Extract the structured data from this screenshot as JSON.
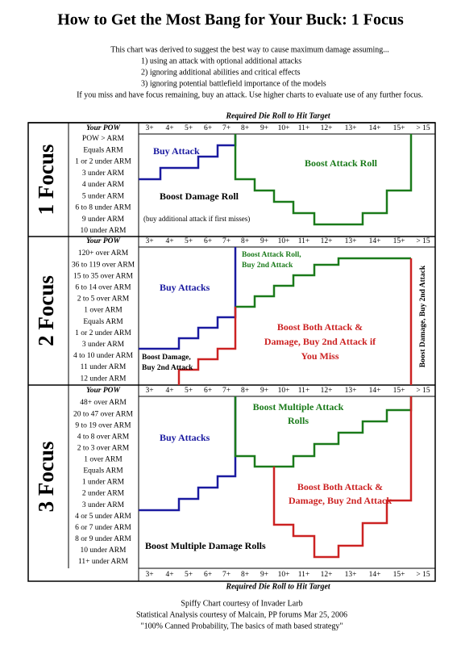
{
  "title": "How to Get the Most Bang for Your Buck: 1 Focus",
  "intro": [
    "This chart was derived to suggest the best way to cause maximum damage assuming...",
    "1) using an attack with optional additional attacks",
    "2) ignoring additional abilities and critical effects",
    "3) ignoring potential battlefield importance of the models",
    "If you miss and have focus remaining, buy an attack.  Use higher charts to evaluate use of any further focus."
  ],
  "axis_title": "Required Die Roll to Hit Target",
  "columns": [
    "3+",
    "4+",
    "5+",
    "6+",
    "7+",
    "8+",
    "9+",
    "10+",
    "11+",
    "12+",
    "13+",
    "14+",
    "15+",
    "> 15"
  ],
  "sections": [
    {
      "label": "1 Focus",
      "pow_header": "Your POW",
      "rows": [
        "POW > ARM",
        "Equals ARM",
        "1 or 2 under ARM",
        "3 under ARM",
        "4 under ARM",
        "5 under ARM",
        "6 to 8 under ARM",
        "9 under ARM",
        "10  under ARM"
      ],
      "regions": [
        {
          "text": [
            "Buy Attack"
          ]
        },
        {
          "text": [
            "Boost Attack Roll"
          ]
        },
        {
          "text": [
            "Boost Damage Roll"
          ]
        },
        {
          "text": [
            "(buy additional attack if first misses)"
          ]
        }
      ]
    },
    {
      "label": "2 Focus",
      "pow_header": "Your POW",
      "rows": [
        "120+ over ARM",
        "36 to 119 over ARM",
        "15 to 35 over ARM",
        "6 to 14 over ARM",
        "2 to 5 over ARM",
        "1 over ARM",
        "Equals ARM",
        "1 or 2 under ARM",
        "3 under ARM",
        "4 to 10 under ARM",
        "11 under ARM",
        "12 under ARM"
      ],
      "regions": [
        {
          "text": [
            "Boost Attack Roll,",
            "Buy 2nd Attack"
          ]
        },
        {
          "text": [
            "Buy Attacks"
          ]
        },
        {
          "text": [
            "Boost Both Attack &",
            "Damage, Buy 2nd Attack if",
            "You Miss"
          ]
        },
        {
          "text": [
            "Boost Damage,",
            "Buy 2nd Attack"
          ]
        },
        {
          "text": [
            "Boost Damage, Buy 2nd Attack"
          ]
        }
      ]
    },
    {
      "label": "3 Focus",
      "pow_header": "Your POW",
      "rows": [
        "48+ over ARM",
        "20 to 47 over ARM",
        "9 to 19 over ARM",
        "4 to 8 over ARM",
        "2 to 3 over ARM",
        "1 over ARM",
        "Equals ARM",
        "1 under ARM",
        "2 under ARM",
        "3 under ARM",
        "4 or 5 under ARM",
        "6 or 7 under ARM",
        "8 or 9 under ARM",
        "10 under ARM",
        "11+ under ARM"
      ],
      "regions": [
        {
          "text": [
            "Boost Multiple Attack",
            "Rolls"
          ]
        },
        {
          "text": [
            "Buy Attacks"
          ]
        },
        {
          "text": [
            "Boost Both Attack &",
            "Damage, Buy 2nd Attack"
          ]
        },
        {
          "text": [
            "Boost Multiple Damage Rolls"
          ]
        }
      ]
    }
  ],
  "credits": [
    "Spiffy Chart courtesy of Invader Larb",
    "Statistical Analysis courtesy of Malcain, PP forums Mar 25, 2006",
    "\"100% Canned Probability, The basics of math based strategy\""
  ]
}
